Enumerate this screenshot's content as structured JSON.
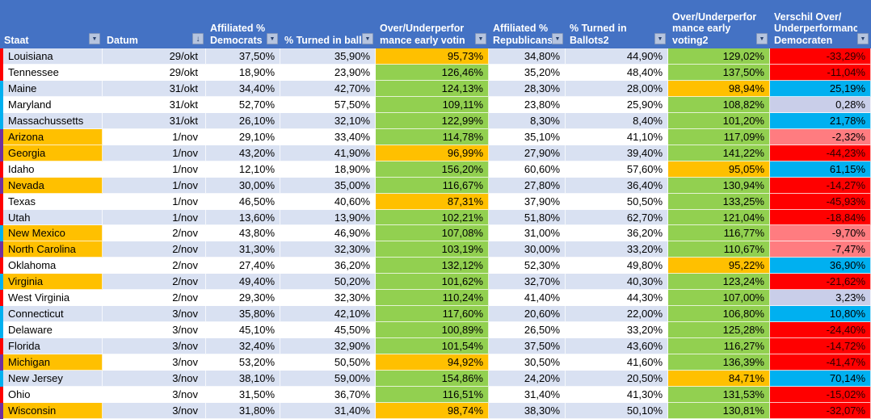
{
  "colors": {
    "header_bg": "#4472C4",
    "band": "#D9E1F2",
    "green": "#92D050",
    "orange": "#FFC000",
    "red": "#FF0000",
    "salmon": "#FF7C80",
    "cyan": "#00B0F0",
    "lavender": "#C9CEE9",
    "strip_red": "#FF0000",
    "strip_cyan": "#00B0F0",
    "strip_purple": "#7030A0"
  },
  "header": {
    "columns": [
      {
        "id": "staat",
        "lines": [
          "Staat"
        ],
        "icon": "filter-dropdown"
      },
      {
        "id": "datum",
        "lines": [
          "Datum"
        ],
        "icon": "sort-filter"
      },
      {
        "id": "dem-affiliated",
        "lines": [
          "Affiliated %",
          "Democrats"
        ],
        "icon": "filter-dropdown"
      },
      {
        "id": "dem-turned-in",
        "lines": [
          "% Turned in ballo"
        ],
        "icon": "filter-dropdown"
      },
      {
        "id": "dem-performance",
        "lines": [
          "Over/Underperfor",
          "mance early votin"
        ],
        "icon": "filter-dropdown"
      },
      {
        "id": "rep-affiliated",
        "lines": [
          "Affiliated %",
          "Republicans"
        ],
        "icon": "filter-dropdown"
      },
      {
        "id": "rep-turned-in",
        "lines": [
          "% Turned in",
          "Ballots2"
        ],
        "icon": "filter-dropdown"
      },
      {
        "id": "rep-performance",
        "lines": [
          "Over/Underperfor",
          "mance early",
          "voting2"
        ],
        "icon": "filter-dropdown"
      },
      {
        "id": "verschil",
        "lines": [
          "Verschil Over/",
          "Underperformance",
          "Democraten"
        ],
        "icon": "filter-dropdown"
      }
    ]
  },
  "rows": [
    {
      "strip": "strip_red",
      "staat": "Louisiana",
      "staat_bg": null,
      "datum": "29/okt",
      "dem_affiliated": "37,50%",
      "dem_turned": "35,90%",
      "dem_perf": "95,73%",
      "dem_perf_bg": "orange",
      "rep_affiliated": "34,80%",
      "rep_turned": "44,90%",
      "rep_perf": "129,02%",
      "rep_perf_bg": "green",
      "verschil": "-33,29%",
      "verschil_bg": "red"
    },
    {
      "strip": "strip_red",
      "staat": "Tennessee",
      "staat_bg": null,
      "datum": "29/okt",
      "dem_affiliated": "18,90%",
      "dem_turned": "23,90%",
      "dem_perf": "126,46%",
      "dem_perf_bg": "green",
      "rep_affiliated": "35,20%",
      "rep_turned": "48,40%",
      "rep_perf": "137,50%",
      "rep_perf_bg": "green",
      "verschil": "-11,04%",
      "verschil_bg": "red"
    },
    {
      "strip": "strip_cyan",
      "staat": "Maine",
      "staat_bg": null,
      "datum": "31/okt",
      "dem_affiliated": "34,40%",
      "dem_turned": "42,70%",
      "dem_perf": "124,13%",
      "dem_perf_bg": "green",
      "rep_affiliated": "28,30%",
      "rep_turned": "28,00%",
      "rep_perf": "98,94%",
      "rep_perf_bg": "orange",
      "verschil": "25,19%",
      "verschil_bg": "cyan"
    },
    {
      "strip": "strip_cyan",
      "staat": "Maryland",
      "staat_bg": null,
      "datum": "31/okt",
      "dem_affiliated": "52,70%",
      "dem_turned": "57,50%",
      "dem_perf": "109,11%",
      "dem_perf_bg": "green",
      "rep_affiliated": "23,80%",
      "rep_turned": "25,90%",
      "rep_perf": "108,82%",
      "rep_perf_bg": "green",
      "verschil": "0,28%",
      "verschil_bg": "lavender"
    },
    {
      "strip": "strip_cyan",
      "staat": "Massachussetts",
      "staat_bg": null,
      "datum": "31/okt",
      "dem_affiliated": "26,10%",
      "dem_turned": "32,10%",
      "dem_perf": "122,99%",
      "dem_perf_bg": "green",
      "rep_affiliated": "8,30%",
      "rep_turned": "8,40%",
      "rep_perf": "101,20%",
      "rep_perf_bg": "green",
      "verschil": "21,78%",
      "verschil_bg": "cyan"
    },
    {
      "strip": "strip_purple",
      "staat": "Arizona",
      "staat_bg": "orange",
      "datum": "1/nov",
      "dem_affiliated": "29,10%",
      "dem_turned": "33,40%",
      "dem_perf": "114,78%",
      "dem_perf_bg": "green",
      "rep_affiliated": "35,10%",
      "rep_turned": "41,10%",
      "rep_perf": "117,09%",
      "rep_perf_bg": "green",
      "verschil": "-2,32%",
      "verschil_bg": "salmon"
    },
    {
      "strip": "strip_purple",
      "staat": "Georgia",
      "staat_bg": "orange",
      "datum": "1/nov",
      "dem_affiliated": "43,20%",
      "dem_turned": "41,90%",
      "dem_perf": "96,99%",
      "dem_perf_bg": "orange",
      "rep_affiliated": "27,90%",
      "rep_turned": "39,40%",
      "rep_perf": "141,22%",
      "rep_perf_bg": "green",
      "verschil": "-44,23%",
      "verschil_bg": "red"
    },
    {
      "strip": "strip_red",
      "staat": "Idaho",
      "staat_bg": null,
      "datum": "1/nov",
      "dem_affiliated": "12,10%",
      "dem_turned": "18,90%",
      "dem_perf": "156,20%",
      "dem_perf_bg": "green",
      "rep_affiliated": "60,60%",
      "rep_turned": "57,60%",
      "rep_perf": "95,05%",
      "rep_perf_bg": "orange",
      "verschil": "61,15%",
      "verschil_bg": "cyan"
    },
    {
      "strip": "strip_purple",
      "staat": "Nevada",
      "staat_bg": "orange",
      "datum": "1/nov",
      "dem_affiliated": "30,00%",
      "dem_turned": "35,00%",
      "dem_perf": "116,67%",
      "dem_perf_bg": "green",
      "rep_affiliated": "27,80%",
      "rep_turned": "36,40%",
      "rep_perf": "130,94%",
      "rep_perf_bg": "green",
      "verschil": "-14,27%",
      "verschil_bg": "red"
    },
    {
      "strip": "strip_red",
      "staat": "Texas",
      "staat_bg": null,
      "datum": "1/nov",
      "dem_affiliated": "46,50%",
      "dem_turned": "40,60%",
      "dem_perf": "87,31%",
      "dem_perf_bg": "orange",
      "rep_affiliated": "37,90%",
      "rep_turned": "50,50%",
      "rep_perf": "133,25%",
      "rep_perf_bg": "green",
      "verschil": "-45,93%",
      "verschil_bg": "red"
    },
    {
      "strip": "strip_red",
      "staat": "Utah",
      "staat_bg": null,
      "datum": "1/nov",
      "dem_affiliated": "13,60%",
      "dem_turned": "13,90%",
      "dem_perf": "102,21%",
      "dem_perf_bg": "green",
      "rep_affiliated": "51,80%",
      "rep_turned": "62,70%",
      "rep_perf": "121,04%",
      "rep_perf_bg": "green",
      "verschil": "-18,84%",
      "verschil_bg": "red"
    },
    {
      "strip": "strip_cyan",
      "staat": "New Mexico",
      "staat_bg": "orange",
      "datum": "2/nov",
      "dem_affiliated": "43,80%",
      "dem_turned": "46,90%",
      "dem_perf": "107,08%",
      "dem_perf_bg": "green",
      "rep_affiliated": "31,00%",
      "rep_turned": "36,20%",
      "rep_perf": "116,77%",
      "rep_perf_bg": "green",
      "verschil": "-9,70%",
      "verschil_bg": "salmon"
    },
    {
      "strip": "strip_purple",
      "staat": "North Carolina",
      "staat_bg": "orange",
      "datum": "2/nov",
      "dem_affiliated": "31,30%",
      "dem_turned": "32,30%",
      "dem_perf": "103,19%",
      "dem_perf_bg": "green",
      "rep_affiliated": "30,00%",
      "rep_turned": "33,20%",
      "rep_perf": "110,67%",
      "rep_perf_bg": "green",
      "verschil": "-7,47%",
      "verschil_bg": "salmon"
    },
    {
      "strip": "strip_red",
      "staat": "Oklahoma",
      "staat_bg": null,
      "datum": "2/nov",
      "dem_affiliated": "27,40%",
      "dem_turned": "36,20%",
      "dem_perf": "132,12%",
      "dem_perf_bg": "green",
      "rep_affiliated": "52,30%",
      "rep_turned": "49,80%",
      "rep_perf": "95,22%",
      "rep_perf_bg": "orange",
      "verschil": "36,90%",
      "verschil_bg": "cyan"
    },
    {
      "strip": "strip_cyan",
      "staat": "Virginia",
      "staat_bg": "orange",
      "datum": "2/nov",
      "dem_affiliated": "49,40%",
      "dem_turned": "50,20%",
      "dem_perf": "101,62%",
      "dem_perf_bg": "green",
      "rep_affiliated": "32,70%",
      "rep_turned": "40,30%",
      "rep_perf": "123,24%",
      "rep_perf_bg": "green",
      "verschil": "-21,62%",
      "verschil_bg": "red"
    },
    {
      "strip": "strip_red",
      "staat": "West Virginia",
      "staat_bg": null,
      "datum": "2/nov",
      "dem_affiliated": "29,30%",
      "dem_turned": "32,30%",
      "dem_perf": "110,24%",
      "dem_perf_bg": "green",
      "rep_affiliated": "41,40%",
      "rep_turned": "44,30%",
      "rep_perf": "107,00%",
      "rep_perf_bg": "green",
      "verschil": "3,23%",
      "verschil_bg": "lavender"
    },
    {
      "strip": "strip_cyan",
      "staat": "Connecticut",
      "staat_bg": null,
      "datum": "3/nov",
      "dem_affiliated": "35,80%",
      "dem_turned": "42,10%",
      "dem_perf": "117,60%",
      "dem_perf_bg": "green",
      "rep_affiliated": "20,60%",
      "rep_turned": "22,00%",
      "rep_perf": "106,80%",
      "rep_perf_bg": "green",
      "verschil": "10,80%",
      "verschil_bg": "cyan"
    },
    {
      "strip": "strip_cyan",
      "staat": "Delaware",
      "staat_bg": null,
      "datum": "3/nov",
      "dem_affiliated": "45,10%",
      "dem_turned": "45,50%",
      "dem_perf": "100,89%",
      "dem_perf_bg": "green",
      "rep_affiliated": "26,50%",
      "rep_turned": "33,20%",
      "rep_perf": "125,28%",
      "rep_perf_bg": "green",
      "verschil": "-24,40%",
      "verschil_bg": "red"
    },
    {
      "strip": "strip_red",
      "staat": "Florida",
      "staat_bg": null,
      "datum": "3/nov",
      "dem_affiliated": "32,40%",
      "dem_turned": "32,90%",
      "dem_perf": "101,54%",
      "dem_perf_bg": "green",
      "rep_affiliated": "37,50%",
      "rep_turned": "43,60%",
      "rep_perf": "116,27%",
      "rep_perf_bg": "green",
      "verschil": "-14,72%",
      "verschil_bg": "red"
    },
    {
      "strip": "strip_purple",
      "staat": "Michigan",
      "staat_bg": "orange",
      "datum": "3/nov",
      "dem_affiliated": "53,20%",
      "dem_turned": "50,50%",
      "dem_perf": "94,92%",
      "dem_perf_bg": "orange",
      "rep_affiliated": "30,50%",
      "rep_turned": "41,60%",
      "rep_perf": "136,39%",
      "rep_perf_bg": "green",
      "verschil": "-41,47%",
      "verschil_bg": "red"
    },
    {
      "strip": "strip_cyan",
      "staat": "New Jersey",
      "staat_bg": null,
      "datum": "3/nov",
      "dem_affiliated": "38,10%",
      "dem_turned": "59,00%",
      "dem_perf": "154,86%",
      "dem_perf_bg": "green",
      "rep_affiliated": "24,20%",
      "rep_turned": "20,50%",
      "rep_perf": "84,71%",
      "rep_perf_bg": "orange",
      "verschil": "70,14%",
      "verschil_bg": "cyan"
    },
    {
      "strip": "strip_red",
      "staat": "Ohio",
      "staat_bg": null,
      "datum": "3/nov",
      "dem_affiliated": "31,50%",
      "dem_turned": "36,70%",
      "dem_perf": "116,51%",
      "dem_perf_bg": "green",
      "rep_affiliated": "31,40%",
      "rep_turned": "41,30%",
      "rep_perf": "131,53%",
      "rep_perf_bg": "green",
      "verschil": "-15,02%",
      "verschil_bg": "red"
    },
    {
      "strip": "strip_purple",
      "staat": "Wisconsin",
      "staat_bg": "orange",
      "datum": "3/nov",
      "dem_affiliated": "31,80%",
      "dem_turned": "31,40%",
      "dem_perf": "98,74%",
      "dem_perf_bg": "orange",
      "rep_affiliated": "38,30%",
      "rep_turned": "50,10%",
      "rep_perf": "130,81%",
      "rep_perf_bg": "green",
      "verschil": "-32,07%",
      "verschil_bg": "red"
    }
  ]
}
